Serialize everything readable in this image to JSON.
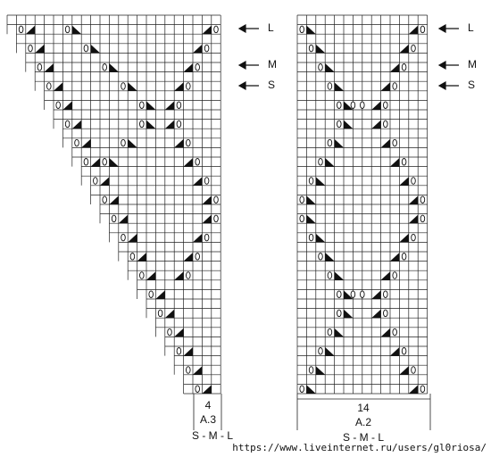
{
  "arrows": [
    {
      "label": "L"
    },
    {
      "label": "M"
    },
    {
      "label": "S"
    }
  ],
  "charts": [
    {
      "stitches": "4",
      "name": "A.3",
      "sizes": "S - M - L"
    },
    {
      "stitches": "14",
      "name": "A.2",
      "sizes": "S - M - L"
    }
  ],
  "watermark": "https://www.liveinternet.ru/users/gl0riosa/"
}
